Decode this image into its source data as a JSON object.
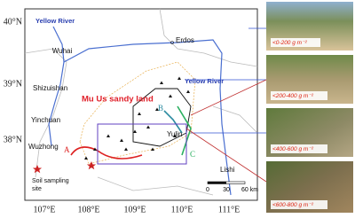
{
  "map": {
    "lat_labels": [
      "40°N",
      "39°N",
      "38°N"
    ],
    "lon_labels": [
      "107°E",
      "108°E",
      "109°E",
      "110°E",
      "111°E"
    ],
    "places": {
      "yellow_river_north": "Yellow River",
      "yellow_river_east": "Yellow River",
      "wuhai": "Wuhai",
      "erdos": "Erdos",
      "shizuishan": "Shizuishan",
      "mu_us": "Mu Us sandy land",
      "yinchuan": "Yinchuan",
      "yulin": "Yulin",
      "wuzhong": "Wuzhong",
      "lishi": "Lishi"
    },
    "transects": [
      "A",
      "B",
      "C"
    ],
    "legend": [
      "Soil sampling",
      "site"
    ],
    "scale": [
      "0",
      "30",
      "60 km"
    ]
  },
  "photos": [
    {
      "label": "<0-200 g m⁻²"
    },
    {
      "label": "<200-400 g m⁻²"
    },
    {
      "label": "<400-600 g m⁻²"
    },
    {
      "label": "<600-800 g m⁻²"
    }
  ]
}
